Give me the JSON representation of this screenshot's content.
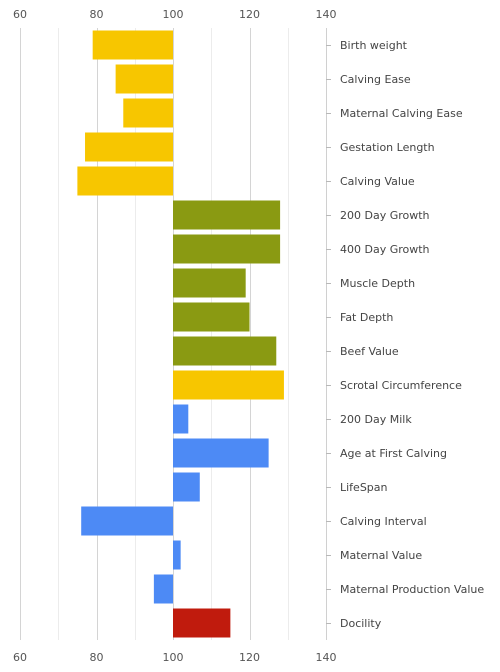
{
  "chart_data": {
    "type": "bar",
    "orientation": "horizontal",
    "baseline": 100,
    "xlim": [
      60,
      140
    ],
    "x_ticks": [
      60,
      80,
      100,
      120,
      140
    ],
    "grid": true,
    "legend": "none",
    "title": "",
    "xlabel": "",
    "ylabel": "",
    "categories": [
      "Birth weight",
      "Calving Ease",
      "Maternal Calving Ease",
      "Gestation Length",
      "Calving Value",
      "200 Day Growth",
      "400 Day Growth",
      "Muscle Depth",
      "Fat Depth",
      "Beef Value",
      "Scrotal Circumference",
      "200 Day Milk",
      "Age at First Calving",
      "LifeSpan",
      "Calving Interval",
      "Maternal Value",
      "Maternal Production Value",
      "Docility"
    ],
    "values": [
      79,
      85,
      87,
      77,
      75,
      128,
      128,
      119,
      120,
      127,
      129,
      104,
      125,
      107,
      76,
      102,
      95,
      115
    ],
    "colors": [
      "#f7c600",
      "#f7c600",
      "#f7c600",
      "#f7c600",
      "#f7c600",
      "#8a9a12",
      "#8a9a12",
      "#8a9a12",
      "#8a9a12",
      "#8a9a12",
      "#f7c600",
      "#4d8af5",
      "#4d8af5",
      "#4d8af5",
      "#4d8af5",
      "#4d8af5",
      "#4d8af5",
      "#c01b0d"
    ]
  }
}
